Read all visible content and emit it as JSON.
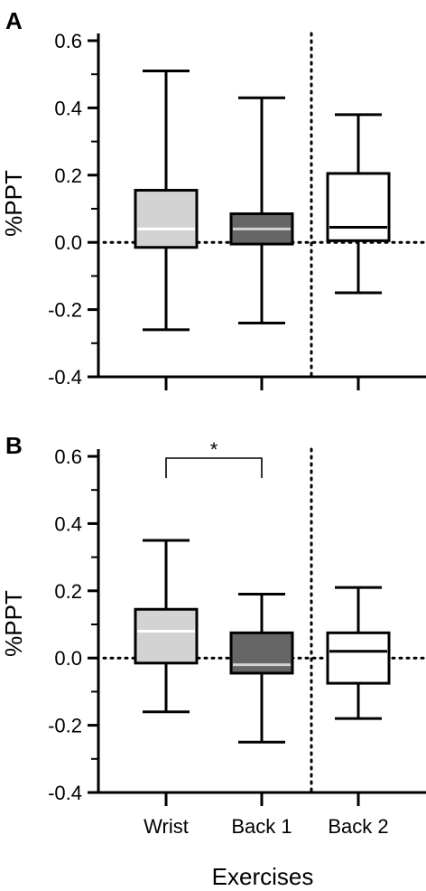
{
  "chart_data": [
    {
      "type": "box",
      "panel": "A",
      "ylabel": "%PPT",
      "ylim": [
        -0.4,
        0.6
      ],
      "yticks": [
        "-0.4",
        "-0.2",
        "0.0",
        "0.2",
        "0.4",
        "0.6"
      ],
      "reference_line_y": 0.0,
      "separator_between": [
        "Back 1",
        "Back 2"
      ],
      "series": [
        {
          "category": "Wrist",
          "min": -0.26,
          "q1": -0.015,
          "median": 0.04,
          "q3": 0.155,
          "max": 0.51,
          "color": "#d3d3d3",
          "median_color": "#ffffff"
        },
        {
          "category": "Back 1",
          "min": -0.24,
          "q1": -0.005,
          "median": 0.04,
          "q3": 0.085,
          "max": 0.43,
          "color": "#666666",
          "median_color": "#d3d3d3"
        },
        {
          "category": "Back 2",
          "min": -0.15,
          "q1": 0.005,
          "median": 0.045,
          "q3": 0.205,
          "max": 0.38,
          "color": "#ffffff",
          "median_color": "#000000"
        }
      ]
    },
    {
      "type": "box",
      "panel": "B",
      "ylabel": "%PPT",
      "xlabel": "Exercises",
      "ylim": [
        -0.4,
        0.6
      ],
      "yticks": [
        "-0.4",
        "-0.2",
        "0.0",
        "0.2",
        "0.4",
        "0.6"
      ],
      "reference_line_y": 0.0,
      "separator_between": [
        "Back 1",
        "Back 2"
      ],
      "categories": [
        "Wrist",
        "Back 1",
        "Back 2"
      ],
      "significance": {
        "from": "Wrist",
        "to": "Back 1",
        "label": "*"
      },
      "series": [
        {
          "category": "Wrist",
          "min": -0.16,
          "q1": -0.015,
          "median": 0.08,
          "q3": 0.145,
          "max": 0.35,
          "color": "#d3d3d3",
          "median_color": "#ffffff"
        },
        {
          "category": "Back 1",
          "min": -0.25,
          "q1": -0.045,
          "median": -0.02,
          "q3": 0.075,
          "max": 0.19,
          "color": "#666666",
          "median_color": "#d3d3d3"
        },
        {
          "category": "Back 2",
          "min": -0.18,
          "q1": -0.075,
          "median": 0.02,
          "q3": 0.075,
          "max": 0.21,
          "color": "#ffffff",
          "median_color": "#000000"
        }
      ]
    }
  ]
}
